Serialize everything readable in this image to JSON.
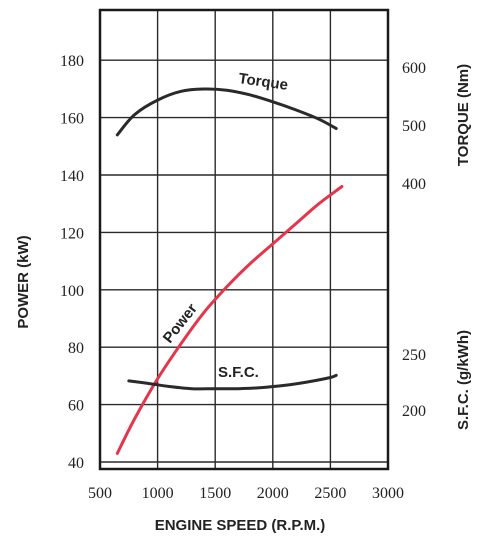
{
  "chart_data": {
    "type": "line",
    "xlabel": "ENGINE SPEED (R.P.M.)",
    "xlim": [
      500,
      3000
    ],
    "x_ticks": [
      "500",
      "1000",
      "1500",
      "2000",
      "2500",
      "3000"
    ],
    "grid": true,
    "axes": {
      "power": {
        "label": "POWER (kW)",
        "side": "left",
        "ylim": [
          37,
          200
        ],
        "ticks": [
          "40",
          "60",
          "80",
          "100",
          "120",
          "140",
          "160",
          "180"
        ]
      },
      "torque": {
        "label": "TORQUE (Nm)",
        "side": "right-upper",
        "ticks": [
          "400",
          "500",
          "600"
        ]
      },
      "sfc": {
        "label": "S.F.C. (g/kWh)",
        "side": "right-lower",
        "ticks": [
          "200",
          "250"
        ]
      }
    },
    "series": [
      {
        "name": "Torque",
        "axis": "torque",
        "color": "#2a2a2a",
        "x": [
          650,
          800,
          1000,
          1200,
          1400,
          1600,
          1800,
          2000,
          2200,
          2400,
          2550
        ],
        "y": [
          483,
          518,
          543,
          558,
          562,
          560,
          552,
          540,
          526,
          510,
          494
        ]
      },
      {
        "name": "Power",
        "axis": "power",
        "color": "#e6344a",
        "x": [
          650,
          800,
          1000,
          1200,
          1400,
          1600,
          1800,
          2000,
          2200,
          2400,
          2600
        ],
        "y": [
          43,
          55,
          69,
          81,
          92,
          101,
          109,
          116,
          123,
          130,
          136
        ]
      },
      {
        "name": "S.F.C.",
        "axis": "sfc",
        "color": "#2a2a2a",
        "x": [
          750,
          900,
          1100,
          1300,
          1500,
          1700,
          1900,
          2100,
          2300,
          2500,
          2550
        ],
        "y": [
          226,
          224,
          221,
          219,
          219,
          219,
          220,
          222,
          225,
          229,
          231
        ]
      }
    ]
  }
}
